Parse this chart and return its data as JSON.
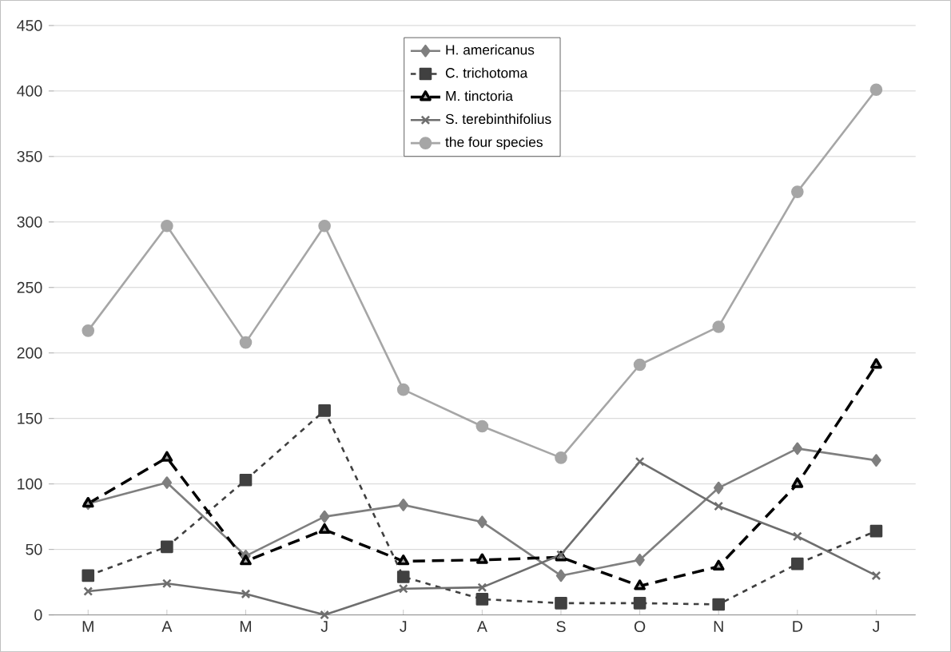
{
  "chart_data": {
    "type": "line",
    "categories": [
      "M",
      "A",
      "M",
      "J",
      "J",
      "A",
      "S",
      "O",
      "N",
      "D",
      "J"
    ],
    "series": [
      {
        "name": "H. americanus",
        "color": "#7f7f7f",
        "marker": "diamond",
        "line_style": "solid",
        "values": [
          85,
          101,
          45,
          75,
          84,
          71,
          30,
          42,
          97,
          127,
          118
        ]
      },
      {
        "name": "C. trichotoma",
        "color": "#404040",
        "marker": "square",
        "line_style": "dashed",
        "values": [
          30,
          52,
          103,
          156,
          29,
          12,
          9,
          9,
          8,
          39,
          64
        ]
      },
      {
        "name": "M. tinctoria",
        "color": "#000000",
        "marker": "triangle",
        "line_style": "dashed",
        "values": [
          85,
          120,
          41,
          65,
          41,
          42,
          44,
          22,
          37,
          100,
          191
        ]
      },
      {
        "name": "S. terebinthifolius",
        "color": "#6e6e6e",
        "marker": "cross",
        "line_style": "solid",
        "values": [
          18,
          24,
          16,
          0,
          20,
          21,
          46,
          117,
          83,
          60,
          30
        ]
      },
      {
        "name": "the four species",
        "color": "#a6a6a6",
        "marker": "circle",
        "line_style": "solid",
        "values": [
          217,
          297,
          208,
          297,
          172,
          144,
          120,
          191,
          220,
          323,
          401
        ]
      }
    ],
    "ylim": [
      0,
      450
    ],
    "yticks": [
      0,
      50,
      100,
      150,
      200,
      250,
      300,
      350,
      400,
      450
    ],
    "grid": "y",
    "legend": "top"
  }
}
